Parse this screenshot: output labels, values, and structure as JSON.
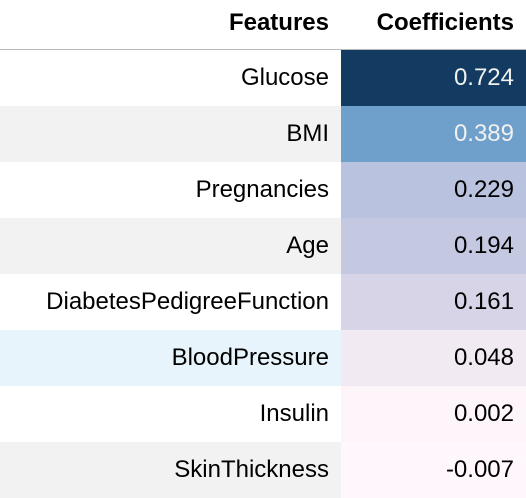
{
  "table": {
    "headers": {
      "feature": "Features",
      "coefficient": "Coefficients"
    },
    "rows": [
      {
        "feature": "Glucose",
        "coefficient": "0.724",
        "cell_color": "#133a61",
        "text_color": "#f1f1f1",
        "row_bg": "#ffffff"
      },
      {
        "feature": "BMI",
        "coefficient": "0.389",
        "cell_color": "#6f9fcb",
        "text_color": "#f1f1f1",
        "row_bg": "#f2f2f2"
      },
      {
        "feature": "Pregnancies",
        "coefficient": "0.229",
        "cell_color": "#b9c3df",
        "text_color": "#000000",
        "row_bg": "#ffffff"
      },
      {
        "feature": "Age",
        "coefficient": "0.194",
        "cell_color": "#c4c9e1",
        "text_color": "#000000",
        "row_bg": "#f2f2f2"
      },
      {
        "feature": "DiabetesPedigreeFunction",
        "coefficient": "0.161",
        "cell_color": "#d6d4e6",
        "text_color": "#000000",
        "row_bg": "#ffffff"
      },
      {
        "feature": "BloodPressure",
        "coefficient": "0.048",
        "cell_color": "#f2eaf3",
        "text_color": "#000000",
        "row_bg": "#e8f4fc"
      },
      {
        "feature": "Insulin",
        "coefficient": "0.002",
        "cell_color": "#fdf5fa",
        "text_color": "#000000",
        "row_bg": "#ffffff"
      },
      {
        "feature": "SkinThickness",
        "coefficient": "-0.007",
        "cell_color": "#fff7fb",
        "text_color": "#000000",
        "row_bg": "#f2f2f2"
      }
    ]
  }
}
